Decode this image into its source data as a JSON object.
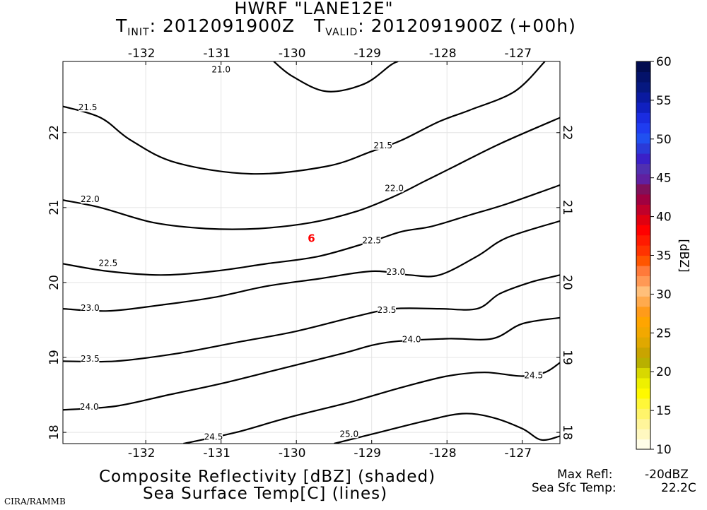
{
  "header": {
    "title": "HWRF \"LANE12E\"",
    "t_init_prefix": "T",
    "t_init_sub": "INIT",
    "t_init_value": ": 2012091900Z",
    "t_valid_prefix": "T",
    "t_valid_sub": "VALID",
    "t_valid_value": ": 2012091900Z (+00h)"
  },
  "footer": {
    "line1": "Composite Reflectivity [dBZ] (shaded)",
    "line2": "Sea Surface Temp[C] (lines)",
    "credit": "CIRA/RAMMB",
    "max_refl_label": "Max Refl:",
    "max_refl_value": "-20dBZ",
    "sst_label": "Sea Sfc Temp:",
    "sst_value": "22.2C"
  },
  "chart_data": {
    "type": "contour",
    "x_ticks": [
      "-132",
      "-131",
      "-130",
      "-129",
      "-128",
      "-127"
    ],
    "x_tick_values": [
      -132,
      -131,
      -130,
      -129,
      -128,
      -127
    ],
    "y_ticks": [
      "18",
      "19",
      "20",
      "21",
      "22"
    ],
    "y_tick_values": [
      18,
      19,
      20,
      21,
      22
    ],
    "xlim": [
      -133.1,
      -126.5
    ],
    "ylim": [
      17.85,
      22.95
    ],
    "storm_marker": {
      "symbol": "6",
      "lon": -129.8,
      "lat": 20.6,
      "color": "#ff0000"
    },
    "contours": [
      {
        "level": "21.0",
        "points": [
          [
            -130.3,
            22.95
          ],
          [
            -130.05,
            22.75
          ],
          [
            -129.6,
            22.55
          ],
          [
            -129.1,
            22.65
          ],
          [
            -128.75,
            22.9
          ],
          [
            -128.65,
            22.95
          ]
        ],
        "labels": [
          {
            "text": "21.0",
            "lon": -131.0,
            "lat": 22.83
          }
        ]
      },
      {
        "level": "21.5",
        "points": [
          [
            -133.1,
            22.35
          ],
          [
            -132.6,
            22.2
          ],
          [
            -132.2,
            21.9
          ],
          [
            -131.6,
            21.6
          ],
          [
            -130.6,
            21.45
          ],
          [
            -129.6,
            21.55
          ],
          [
            -129.0,
            21.75
          ],
          [
            -128.6,
            21.9
          ],
          [
            -128.1,
            22.15
          ],
          [
            -127.7,
            22.3
          ],
          [
            -127.1,
            22.55
          ],
          [
            -126.7,
            22.95
          ]
        ],
        "labels": [
          {
            "text": "21.5",
            "lon": -132.77,
            "lat": 22.33
          },
          {
            "text": "21.5",
            "lon": -128.85,
            "lat": 21.82
          }
        ]
      },
      {
        "level": "22.0",
        "points": [
          [
            -133.1,
            21.1
          ],
          [
            -132.6,
            21.0
          ],
          [
            -131.9,
            20.8
          ],
          [
            -131.2,
            20.72
          ],
          [
            -130.5,
            20.72
          ],
          [
            -129.8,
            20.8
          ],
          [
            -129.2,
            20.95
          ],
          [
            -128.7,
            21.15
          ],
          [
            -128.3,
            21.35
          ],
          [
            -127.9,
            21.55
          ],
          [
            -127.3,
            21.85
          ],
          [
            -126.5,
            22.2
          ]
        ],
        "labels": [
          {
            "text": "22.0",
            "lon": -132.74,
            "lat": 21.1
          },
          {
            "text": "22.0",
            "lon": -128.7,
            "lat": 21.25
          }
        ]
      },
      {
        "level": "22.5",
        "points": [
          [
            -133.1,
            20.25
          ],
          [
            -132.5,
            20.15
          ],
          [
            -131.8,
            20.1
          ],
          [
            -131.1,
            20.15
          ],
          [
            -130.4,
            20.25
          ],
          [
            -129.7,
            20.35
          ],
          [
            -129.0,
            20.55
          ],
          [
            -128.6,
            20.68
          ],
          [
            -128.2,
            20.75
          ],
          [
            -127.7,
            20.9
          ],
          [
            -127.2,
            21.05
          ],
          [
            -126.5,
            21.3
          ]
        ],
        "labels": [
          {
            "text": "22.5",
            "lon": -132.5,
            "lat": 20.25
          },
          {
            "text": "22.5",
            "lon": -129.0,
            "lat": 20.55
          }
        ]
      },
      {
        "level": "23.0",
        "points": [
          [
            -133.1,
            19.65
          ],
          [
            -132.5,
            19.62
          ],
          [
            -131.8,
            19.7
          ],
          [
            -131.1,
            19.8
          ],
          [
            -130.4,
            19.95
          ],
          [
            -129.7,
            20.05
          ],
          [
            -129.0,
            20.15
          ],
          [
            -128.5,
            20.1
          ],
          [
            -128.1,
            20.1
          ],
          [
            -127.6,
            20.35
          ],
          [
            -127.2,
            20.6
          ],
          [
            -126.5,
            20.82
          ]
        ],
        "labels": [
          {
            "text": "23.0",
            "lon": -132.74,
            "lat": 19.65
          },
          {
            "text": "23.0",
            "lon": -128.68,
            "lat": 20.13
          }
        ]
      },
      {
        "level": "23.5",
        "points": [
          [
            -133.1,
            18.95
          ],
          [
            -132.4,
            18.95
          ],
          [
            -131.6,
            19.05
          ],
          [
            -130.8,
            19.2
          ],
          [
            -130.0,
            19.35
          ],
          [
            -129.2,
            19.55
          ],
          [
            -128.7,
            19.65
          ],
          [
            -128.1,
            19.65
          ],
          [
            -127.6,
            19.65
          ],
          [
            -127.3,
            19.85
          ],
          [
            -126.9,
            20.0
          ],
          [
            -126.5,
            20.1
          ]
        ],
        "labels": [
          {
            "text": "23.5",
            "lon": -132.74,
            "lat": 18.97
          },
          {
            "text": "23.5",
            "lon": -128.8,
            "lat": 19.62
          }
        ]
      },
      {
        "level": "24.0",
        "points": [
          [
            -133.1,
            18.3
          ],
          [
            -132.4,
            18.35
          ],
          [
            -131.7,
            18.5
          ],
          [
            -131.0,
            18.65
          ],
          [
            -130.2,
            18.85
          ],
          [
            -129.4,
            19.05
          ],
          [
            -128.8,
            19.2
          ],
          [
            -128.0,
            19.25
          ],
          [
            -127.4,
            19.25
          ],
          [
            -127.0,
            19.45
          ],
          [
            -126.5,
            19.53
          ]
        ],
        "labels": [
          {
            "text": "24.0",
            "lon": -132.75,
            "lat": 18.33
          },
          {
            "text": "24.0",
            "lon": -128.47,
            "lat": 19.23
          }
        ]
      },
      {
        "level": "24.5",
        "points": [
          [
            -131.5,
            17.85
          ],
          [
            -130.8,
            18.0
          ],
          [
            -130.1,
            18.2
          ],
          [
            -129.3,
            18.4
          ],
          [
            -128.6,
            18.6
          ],
          [
            -128.0,
            18.75
          ],
          [
            -127.5,
            18.8
          ],
          [
            -127.0,
            18.75
          ],
          [
            -126.7,
            18.8
          ],
          [
            -126.5,
            18.93
          ]
        ],
        "labels": [
          {
            "text": "24.5",
            "lon": -131.1,
            "lat": 17.93
          },
          {
            "text": "24.5",
            "lon": -126.85,
            "lat": 18.75
          }
        ]
      },
      {
        "level": "25.0",
        "points": [
          [
            -129.5,
            17.85
          ],
          [
            -128.9,
            18.0
          ],
          [
            -128.3,
            18.15
          ],
          [
            -127.8,
            18.25
          ],
          [
            -127.4,
            18.2
          ],
          [
            -127.0,
            18.05
          ],
          [
            -126.75,
            17.9
          ],
          [
            -126.5,
            17.95
          ]
        ],
        "labels": [
          {
            "text": "25.0",
            "lon": -129.3,
            "lat": 17.97
          }
        ]
      }
    ],
    "colorbar": {
      "label": "[dBZ]",
      "ticks": [
        "10",
        "15",
        "20",
        "25",
        "30",
        "35",
        "40",
        "45",
        "50",
        "55",
        "60"
      ],
      "min": 10,
      "max": 60,
      "colors": [
        "#fffde8",
        "#fff8c0",
        "#fff59a",
        "#fff46a",
        "#fff738",
        "#fff900",
        "#eef000",
        "#d8d800",
        "#b8b000",
        "#c9a400",
        "#e0a800",
        "#f2a800",
        "#ffa500",
        "#ff9b1a",
        "#ffaa4d",
        "#ffbf7a",
        "#ff9955",
        "#ff7a3a",
        "#ff5500",
        "#ff3300",
        "#ff1a00",
        "#ff0000",
        "#e00010",
        "#c0002a",
        "#a00040",
        "#80105a",
        "#6020a0",
        "#5030b0",
        "#3a20c8",
        "#2a3ad8",
        "#2050f0",
        "#1f3cf0",
        "#1a2ce0",
        "#1020c0",
        "#0a1aa0",
        "#061880",
        "#04126a",
        "#020c50"
      ]
    }
  }
}
